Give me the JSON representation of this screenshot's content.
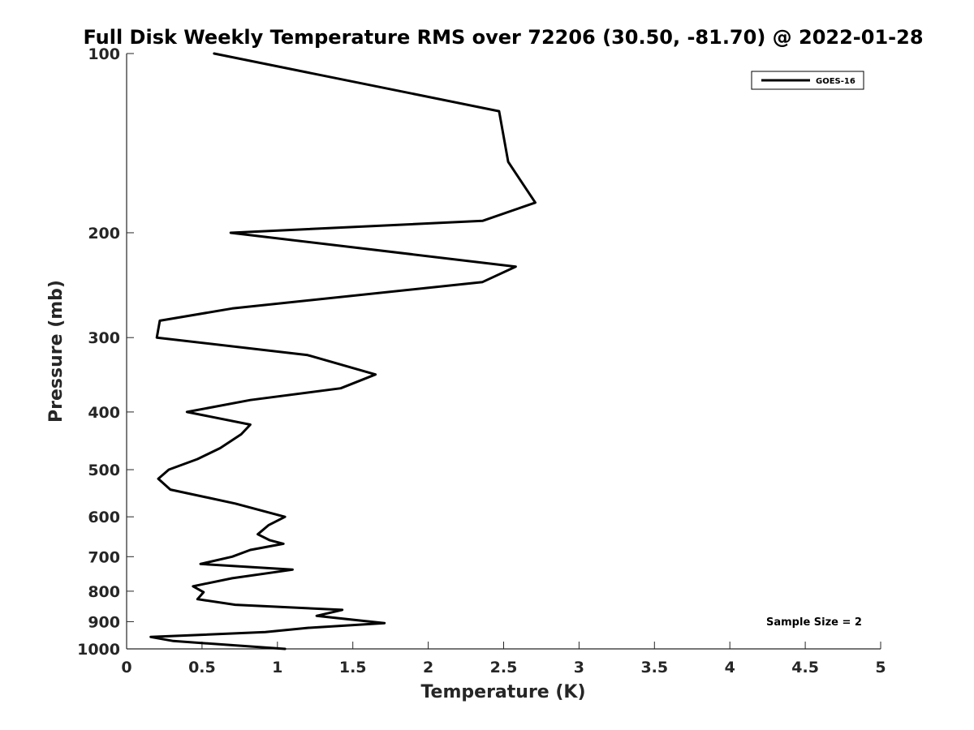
{
  "chart_data": {
    "type": "line",
    "title": "Full Disk Weekly Temperature RMS over 72206 (30.50, -81.70) @ 2022-01-28",
    "xlabel": "Temperature (K)",
    "ylabel": "Pressure (mb)",
    "xlim": [
      0,
      5
    ],
    "ylim": [
      100,
      1000
    ],
    "yscale": "log",
    "y_reversed": true,
    "xticks": [
      0,
      0.5,
      1,
      1.5,
      2,
      2.5,
      3,
      3.5,
      4,
      4.5,
      5
    ],
    "xtick_labels": [
      "0",
      "0.5",
      "1",
      "1.5",
      "2",
      "2.5",
      "3",
      "3.5",
      "4",
      "4.5",
      "5"
    ],
    "yticks": [
      100,
      200,
      300,
      400,
      500,
      600,
      700,
      800,
      900,
      1000
    ],
    "ytick_labels": [
      "100",
      "200",
      "300",
      "400",
      "500",
      "600",
      "700",
      "800",
      "900",
      "1000"
    ],
    "grid": false,
    "legend_position": "top-right",
    "series": [
      {
        "name": "GOES-16",
        "color": "#000000",
        "points": [
          [
            0.58,
            100
          ],
          [
            2.47,
            125
          ],
          [
            2.53,
            152
          ],
          [
            2.71,
            178
          ],
          [
            2.36,
            191
          ],
          [
            0.69,
            200
          ],
          [
            2.58,
            228
          ],
          [
            2.36,
            242
          ],
          [
            0.7,
            268
          ],
          [
            0.22,
            281
          ],
          [
            0.2,
            300
          ],
          [
            1.2,
            321
          ],
          [
            1.65,
            346
          ],
          [
            1.42,
            365
          ],
          [
            0.82,
            382
          ],
          [
            0.4,
            400
          ],
          [
            0.82,
            420
          ],
          [
            0.76,
            436
          ],
          [
            0.62,
            460
          ],
          [
            0.47,
            480
          ],
          [
            0.28,
            500
          ],
          [
            0.21,
            518
          ],
          [
            0.29,
            540
          ],
          [
            0.72,
            570
          ],
          [
            1.05,
            600
          ],
          [
            0.94,
            620
          ],
          [
            0.87,
            642
          ],
          [
            0.95,
            657
          ],
          [
            1.04,
            666
          ],
          [
            0.82,
            682
          ],
          [
            0.7,
            700
          ],
          [
            0.49,
            720
          ],
          [
            1.1,
            736
          ],
          [
            0.7,
            761
          ],
          [
            0.44,
            785
          ],
          [
            0.51,
            803
          ],
          [
            0.47,
            825
          ],
          [
            0.72,
            843
          ],
          [
            1.43,
            860
          ],
          [
            1.26,
            880
          ],
          [
            1.71,
            905
          ],
          [
            1.2,
            922
          ],
          [
            0.92,
            937
          ],
          [
            0.16,
            955
          ],
          [
            0.31,
            970
          ],
          [
            1.05,
            1000
          ]
        ]
      }
    ],
    "annotation": "Sample Size = 2"
  }
}
